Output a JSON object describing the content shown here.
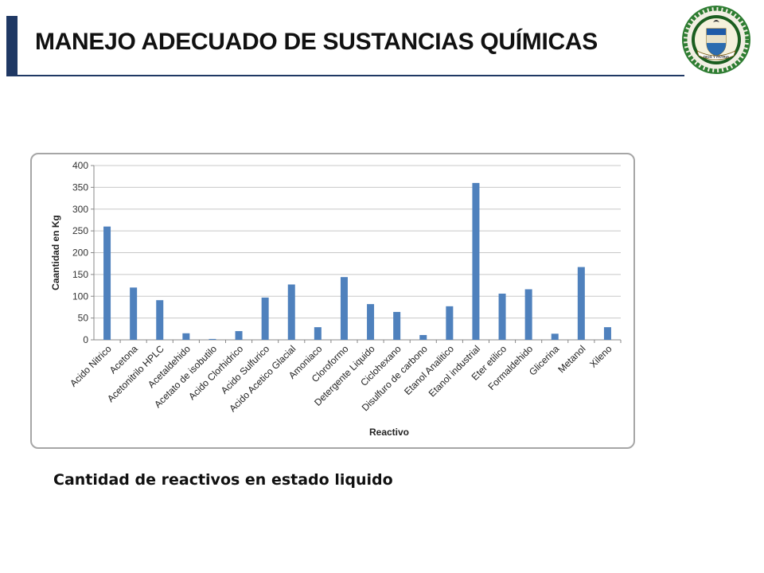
{
  "header": {
    "title": "MANEJO ADECUADO DE SUSTANCIAS QUÍMICAS",
    "accent_color": "#1f3864"
  },
  "seal": {
    "icon": "police-seal-icon",
    "ring_top_text": "REPUBLICA DE COLOMBIA",
    "ring_bottom_text": "POLICIA NACIONAL",
    "ribbon_text": "DIOS Y PATRIA"
  },
  "chart_data": {
    "type": "bar",
    "title": "",
    "xlabel": "Reactivo",
    "ylabel": "Caantidad en Kg",
    "ylim": [
      0,
      400
    ],
    "yticks": [
      0,
      50,
      100,
      150,
      200,
      250,
      300,
      350,
      400
    ],
    "grid": true,
    "bar_color": "#4f81bd",
    "categories": [
      "Acido Nitrico",
      "Acetona",
      "Acetonitrilo HPLC",
      "Acetaldehido",
      "Acetato de isobutilo",
      "Acido Clorhidrico",
      "Acido Sulfurico",
      "Acido Acetico Glacial",
      "Amoniaco",
      "Cloroformo",
      "Detergente Liquido",
      "Ciclohexano",
      "Disulfuro de carbono",
      "Etanol Analitico",
      "Etanol industrial",
      "Eter etilico",
      "Formaldehido",
      "Glicerina",
      "Metanol",
      "Xileno"
    ],
    "values": [
      260,
      120,
      91,
      15,
      2,
      20,
      97,
      127,
      29,
      144,
      82,
      64,
      11,
      77,
      360,
      106,
      116,
      14,
      167,
      29
    ]
  },
  "caption": "Cantidad de reactivos en estado liquido"
}
